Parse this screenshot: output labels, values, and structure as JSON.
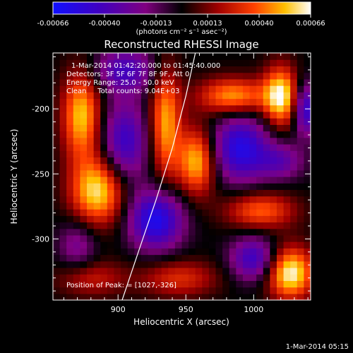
{
  "chart_data": {
    "type": "heatmap",
    "title": "Reconstructed RHESSI Image",
    "xlabel": "Heliocentric X (arcsec)",
    "ylabel": "Heliocentric Y (arcsec)",
    "x_range": [
      852,
      1042
    ],
    "y_range": [
      -347,
      -157
    ],
    "x_ticks": [
      900,
      950,
      1000
    ],
    "y_ticks": [
      -200,
      -250,
      -300
    ],
    "colorbar": {
      "range": [
        -0.00066,
        0.00066
      ],
      "ticks": [
        "-0.00066",
        "-0.00040",
        "-0.00013",
        "0.00013",
        "0.00040",
        "0.00066"
      ],
      "unit_label": "(photons cm⁻² s⁻¹ asec⁻²)",
      "colors": [
        "#1010ff",
        "#4000c0",
        "#800080",
        "#000000",
        "#a00000",
        "#ff4000",
        "#ffc000",
        "#ffffff"
      ]
    },
    "annotations": {
      "time_range": "1-Mar-2014 01:42:20.000 to 01:45:40.000",
      "detectors": "Detectors: 3F 5F 6F 7F 8F 9F, Att 0",
      "energy_range": "Energy Range: 25.0 - 50.0 keV",
      "clean": "Clean     Total counts: 9.04E+03",
      "peak": "Position of Peak: = [1027,-326]"
    },
    "limb_curve": [
      [
        903,
        -347
      ],
      [
        915,
        -310
      ],
      [
        928,
        -270
      ],
      [
        940,
        -230
      ],
      [
        950,
        -190
      ],
      [
        957,
        -157
      ]
    ],
    "blobs": [
      {
        "x": 873,
        "y": -205,
        "v": 0.00055,
        "sx": 10,
        "sy": 24
      },
      {
        "x": 885,
        "y": -263,
        "v": 0.0006,
        "sx": 14,
        "sy": 18
      },
      {
        "x": 870,
        "y": -305,
        "v": -0.00025,
        "sx": 10,
        "sy": 14
      },
      {
        "x": 905,
        "y": -170,
        "v": -0.0004,
        "sx": 16,
        "sy": 12
      },
      {
        "x": 905,
        "y": -225,
        "v": -0.00045,
        "sx": 12,
        "sy": 22
      },
      {
        "x": 928,
        "y": -285,
        "v": -0.0006,
        "sx": 14,
        "sy": 16
      },
      {
        "x": 935,
        "y": -210,
        "v": 0.0005,
        "sx": 8,
        "sy": 30
      },
      {
        "x": 958,
        "y": -240,
        "v": 0.00055,
        "sx": 10,
        "sy": 18
      },
      {
        "x": 945,
        "y": -330,
        "v": 0.0003,
        "sx": 20,
        "sy": 10
      },
      {
        "x": 985,
        "y": -190,
        "v": 0.0005,
        "sx": 18,
        "sy": 10
      },
      {
        "x": 990,
        "y": -230,
        "v": -0.00055,
        "sx": 15,
        "sy": 18
      },
      {
        "x": 1005,
        "y": -278,
        "v": 0.0004,
        "sx": 18,
        "sy": 10
      },
      {
        "x": 1020,
        "y": -190,
        "v": 0.00062,
        "sx": 9,
        "sy": 16
      },
      {
        "x": 1038,
        "y": -200,
        "v": -0.0005,
        "sx": 6,
        "sy": 14
      },
      {
        "x": 1020,
        "y": -240,
        "v": -0.0003,
        "sx": 12,
        "sy": 10
      },
      {
        "x": 1000,
        "y": -315,
        "v": -0.00045,
        "sx": 12,
        "sy": 12
      },
      {
        "x": 1027,
        "y": -326,
        "v": 0.00066,
        "sx": 12,
        "sy": 14
      },
      {
        "x": 880,
        "y": -330,
        "v": 0.00025,
        "sx": 18,
        "sy": 10
      }
    ]
  },
  "footer": {
    "timestamp": "1-Mar-2014 05:15"
  }
}
